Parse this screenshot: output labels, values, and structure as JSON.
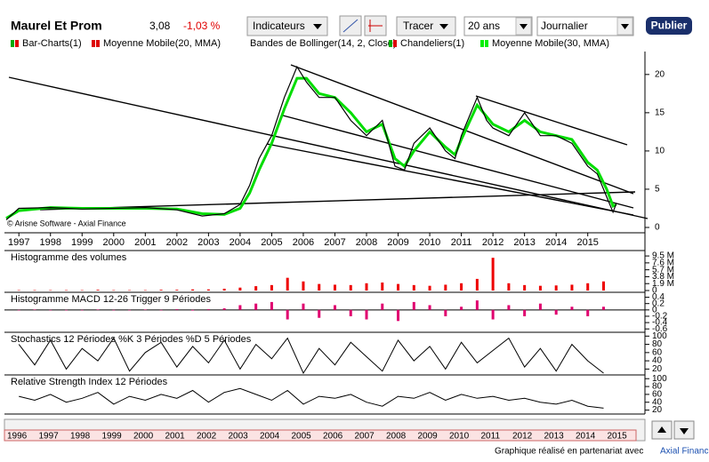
{
  "toolbar": {
    "title": "Maurel Et Prom",
    "price": "3,08",
    "change": "-1,03 %",
    "indicators": "Indicateurs",
    "draw": "Tracer",
    "period": "20 ans",
    "interval": "Journalier",
    "publish": "Publier"
  },
  "copyright": "© Arisne Software - Axial Finance",
  "footer": {
    "text": "Graphique réalisé en partenariat avec",
    "link": "Axial Finance"
  },
  "navigator": {
    "years": [
      "1996",
      "1997",
      "1998",
      "1999",
      "2000",
      "2001",
      "2002",
      "2003",
      "2004",
      "2005",
      "2006",
      "2007",
      "2008",
      "2009",
      "2010",
      "2011",
      "2012",
      "2013",
      "2014",
      "2015"
    ]
  },
  "chart_data": [
    {
      "type": "line",
      "legend": [
        {
          "name": "Bar-Charts(1)",
          "color": "#00aa00"
        },
        {
          "name": "Moyenne Mobile(20, MMA)",
          "color": "#dd0000"
        },
        {
          "name": "Bandes de Bollinger(14, 2, Close)",
          "color": null
        },
        {
          "name": "Chandeliers(1)",
          "color": "#00aa00"
        },
        {
          "name": "Moyenne Mobile(30, MMA)",
          "color": "#00ee00"
        }
      ],
      "x": [
        1996.6,
        1997,
        1998,
        1999,
        2000,
        2001,
        2002,
        2002.8,
        2003.5,
        2004,
        2004.3,
        2004.6,
        2005,
        2005.4,
        2005.8,
        2006.1,
        2006.5,
        2007,
        2007.5,
        2008,
        2008.5,
        2008.9,
        2009.2,
        2009.5,
        2010,
        2010.5,
        2010.8,
        2011,
        2011.5,
        2011.8,
        2012,
        2012.5,
        2013,
        2013.5,
        2014,
        2014.5,
        2015,
        2015.3,
        2015.6,
        2015.8,
        2015.9
      ],
      "series": [
        {
          "name": "Moyenne Mobile(30, MMA)",
          "color": "#00dd00",
          "values": [
            1.2,
            2.2,
            2.6,
            2.5,
            2.5,
            2.5,
            2.4,
            1.8,
            1.7,
            2.5,
            4.5,
            7.5,
            11,
            15.5,
            19.5,
            19.5,
            17.5,
            17,
            15,
            12.5,
            13.5,
            9,
            8,
            10,
            12.5,
            10.5,
            9.5,
            11.5,
            16,
            14.5,
            13.5,
            12.5,
            14,
            12.5,
            12,
            11.5,
            8.5,
            7.5,
            5,
            2.8,
            3
          ]
        },
        {
          "name": "Chandeliers(1)",
          "color": "#000000",
          "values": [
            1,
            2.5,
            2.6,
            2.4,
            2.5,
            2.6,
            2.3,
            1.5,
            1.8,
            3,
            5.5,
            9,
            12,
            17,
            21,
            19,
            17,
            17,
            14,
            12,
            14,
            8,
            7.5,
            11,
            13,
            10,
            9,
            12,
            17,
            14,
            13,
            12,
            15,
            12,
            12,
            11,
            8,
            7,
            4,
            2,
            3.1
          ]
        }
      ],
      "xlim": [
        1996.6,
        2016.5
      ],
      "xticks": [
        1997,
        1998,
        1999,
        2000,
        2001,
        2002,
        2003,
        2004,
        2005,
        2006,
        2007,
        2008,
        2009,
        2010,
        2011,
        2012,
        2013,
        2014,
        2015
      ],
      "ylim": [
        0,
        23
      ],
      "yticks": [
        0,
        5,
        10,
        15,
        20
      ]
    },
    {
      "type": "bar",
      "title": "Histogramme des volumes",
      "color": "#ee0000",
      "x": [
        1997,
        1997.5,
        1998,
        1998.5,
        1999,
        1999.5,
        2000,
        2000.5,
        2001,
        2001.5,
        2002,
        2002.5,
        2003,
        2003.5,
        2004,
        2004.5,
        2005,
        2005.5,
        2006,
        2006.5,
        2007,
        2007.5,
        2008,
        2008.5,
        2009,
        2009.5,
        2010,
        2010.5,
        2011,
        2011.5,
        2012,
        2012.5,
        2013,
        2013.5,
        2014,
        2014.5,
        2015,
        2015.5
      ],
      "values": [
        0.1,
        0.1,
        0.1,
        0.1,
        0.1,
        0.2,
        0.1,
        0.1,
        0.1,
        0.2,
        0.2,
        0.3,
        0.3,
        0.5,
        0.8,
        1.2,
        1.5,
        3.5,
        2.5,
        1.8,
        1.6,
        1.5,
        2.0,
        2.2,
        1.8,
        1.5,
        1.3,
        1.6,
        2.0,
        3.2,
        9.0,
        2.0,
        1.5,
        1.3,
        1.4,
        1.6,
        2.0,
        2.5
      ],
      "xlim": [
        1996.6,
        2016.5
      ],
      "ylim": [
        0,
        10.5
      ],
      "yticks": [
        {
          "value": 9.5,
          "label": "9.5 M"
        },
        {
          "value": 7.6,
          "label": "7.6 M"
        },
        {
          "value": 5.7,
          "label": "5.7 M"
        },
        {
          "value": 3.8,
          "label": "3.8 M"
        },
        {
          "value": 1.9,
          "label": "1.9 M"
        },
        0
      ]
    },
    {
      "type": "bar",
      "title": "Histogramme MACD 12-26   Trigger 9 Périodes",
      "color": "#e0006f",
      "x": [
        1997,
        1997.5,
        1998,
        1998.5,
        1999,
        1999.5,
        2000,
        2000.5,
        2001,
        2001.5,
        2002,
        2002.5,
        2003,
        2003.5,
        2004,
        2004.5,
        2005,
        2005.5,
        2006,
        2006.5,
        2007,
        2007.5,
        2008,
        2008.5,
        2009,
        2009.5,
        2010,
        2010.5,
        2011,
        2011.5,
        2012,
        2012.5,
        2013,
        2013.5,
        2014,
        2014.5,
        2015,
        2015.5
      ],
      "values": [
        0,
        0.01,
        0,
        -0.01,
        0,
        0.01,
        0,
        0,
        0.01,
        0,
        0.02,
        -0.02,
        0.02,
        0.05,
        0.15,
        0.2,
        0.25,
        -0.3,
        0.2,
        -0.25,
        0.15,
        -0.2,
        -0.3,
        0.2,
        -0.35,
        0.25,
        0.15,
        -0.2,
        0.1,
        0.3,
        -0.3,
        0.15,
        -0.2,
        0.2,
        -0.15,
        0.1,
        -0.2,
        0.1
      ],
      "xlim": [
        1996.6,
        2016.5
      ],
      "ylim": [
        -0.65,
        0.5
      ],
      "yticks": [
        0.4,
        0.2,
        0,
        -0.2,
        -0.4,
        -0.6
      ]
    },
    {
      "type": "line",
      "title": "Stochastics 12 Périodes   %K 3 Périodes   %D 5 Périodes",
      "color": "#000000",
      "x": [
        1997,
        1997.5,
        1998,
        1998.5,
        1999,
        1999.5,
        2000,
        2000.5,
        2001,
        2001.5,
        2002,
        2002.5,
        2003,
        2003.5,
        2004,
        2004.5,
        2005,
        2005.5,
        2006,
        2006.5,
        2007,
        2007.5,
        2008,
        2008.5,
        2009,
        2009.5,
        2010,
        2010.5,
        2011,
        2011.5,
        2012,
        2012.5,
        2013,
        2013.5,
        2014,
        2014.5,
        2015,
        2015.5
      ],
      "values": [
        80,
        30,
        90,
        20,
        70,
        40,
        95,
        15,
        60,
        85,
        25,
        75,
        35,
        90,
        20,
        80,
        45,
        95,
        10,
        70,
        30,
        85,
        50,
        15,
        90,
        40,
        75,
        20,
        85,
        35,
        65,
        95,
        25,
        70,
        15,
        80,
        40,
        10
      ],
      "xlim": [
        1996.6,
        2016.5
      ],
      "ylim": [
        10,
        105
      ],
      "yticks": [
        100,
        80,
        60,
        40,
        20
      ]
    },
    {
      "type": "line",
      "title": "Relative Strength Index 12 Périodes",
      "color": "#000000",
      "x": [
        1997,
        1997.5,
        1998,
        1998.5,
        1999,
        1999.5,
        2000,
        2000.5,
        2001,
        2001.5,
        2002,
        2002.5,
        2003,
        2003.5,
        2004,
        2004.5,
        2005,
        2005.5,
        2006,
        2006.5,
        2007,
        2007.5,
        2008,
        2008.5,
        2009,
        2009.5,
        2010,
        2010.5,
        2011,
        2011.5,
        2012,
        2012.5,
        2013,
        2013.5,
        2014,
        2014.5,
        2015,
        2015.5
      ],
      "values": [
        55,
        45,
        60,
        40,
        50,
        65,
        35,
        55,
        45,
        60,
        50,
        70,
        40,
        65,
        75,
        60,
        45,
        70,
        35,
        55,
        50,
        60,
        40,
        30,
        55,
        50,
        65,
        45,
        60,
        50,
        55,
        45,
        50,
        40,
        35,
        45,
        30,
        25
      ],
      "xlim": [
        1996.6,
        2016.5
      ],
      "ylim": [
        10,
        105
      ],
      "yticks": [
        100,
        80,
        60,
        40,
        20
      ]
    }
  ]
}
